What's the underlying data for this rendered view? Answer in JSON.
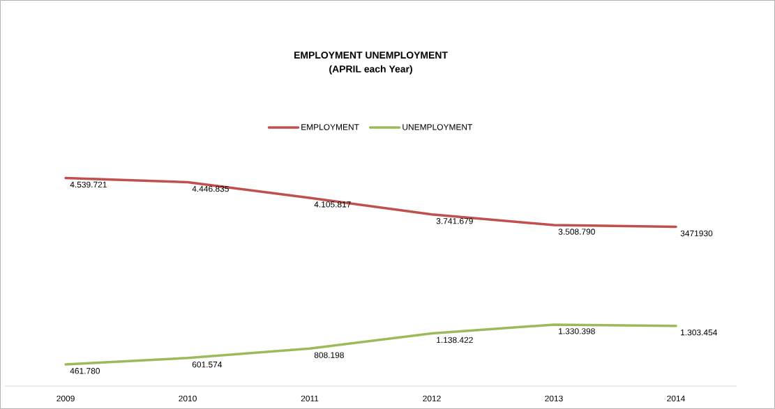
{
  "chart_data": {
    "type": "line",
    "title": "EMPLOYMENT UNEMPLOYMENT",
    "subtitle": "(APRIL each Year)",
    "categories": [
      "2009",
      "2010",
      "2011",
      "2012",
      "2013",
      "2014"
    ],
    "series": [
      {
        "name": "EMPLOYMENT",
        "color": "#c0504d",
        "values": [
          4539721,
          4446835,
          4105817,
          3741679,
          3508790,
          3471930
        ],
        "value_labels": [
          "4.539.721",
          "4.446.835",
          "4.105.817",
          "3.741.679",
          "3.508.790",
          "3471930"
        ]
      },
      {
        "name": "UNEMPLOYMENT",
        "color": "#9bbb59",
        "values": [
          461780,
          601574,
          808198,
          1138422,
          1330398,
          1303454
        ],
        "value_labels": [
          "461.780",
          "601.574",
          "808.198",
          "1.138.422",
          "1.330.398",
          "1.303.454"
        ]
      }
    ],
    "tick_labels": "x",
    "legend": "top",
    "marker": "none",
    "line_style": "solid",
    "grid": false
  }
}
